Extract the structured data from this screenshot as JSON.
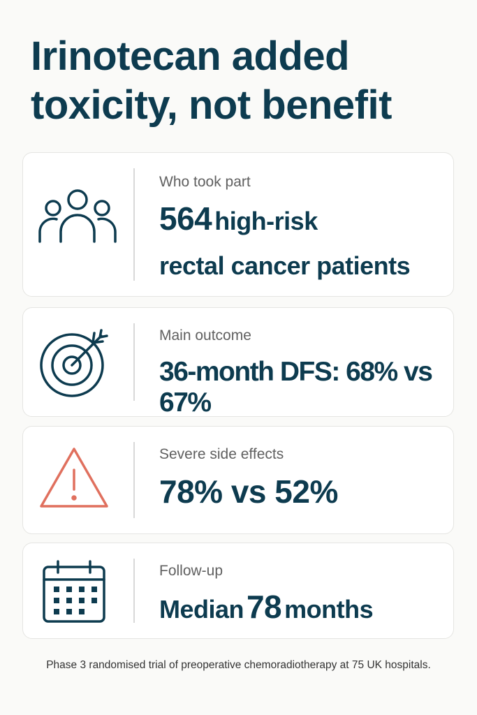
{
  "header": {
    "title": "Irinotecan added toxicity, not benefit"
  },
  "cards": [
    {
      "label": "Who took part",
      "value": [
        "564",
        "high-risk",
        "rectal cancer patients"
      ]
    },
    {
      "label": "Main outcome",
      "value": [
        "36-month DFS: 68% vs 67%"
      ]
    },
    {
      "label": "Severe side effects",
      "value": [
        "78% vs 52%"
      ]
    },
    {
      "label": "Follow-up",
      "value": [
        "Median",
        "78",
        "months"
      ]
    }
  ],
  "footer": {
    "note": "Phase 3 randomised trial of preoperative chemoradiotherapy at 75 UK hospitals."
  }
}
